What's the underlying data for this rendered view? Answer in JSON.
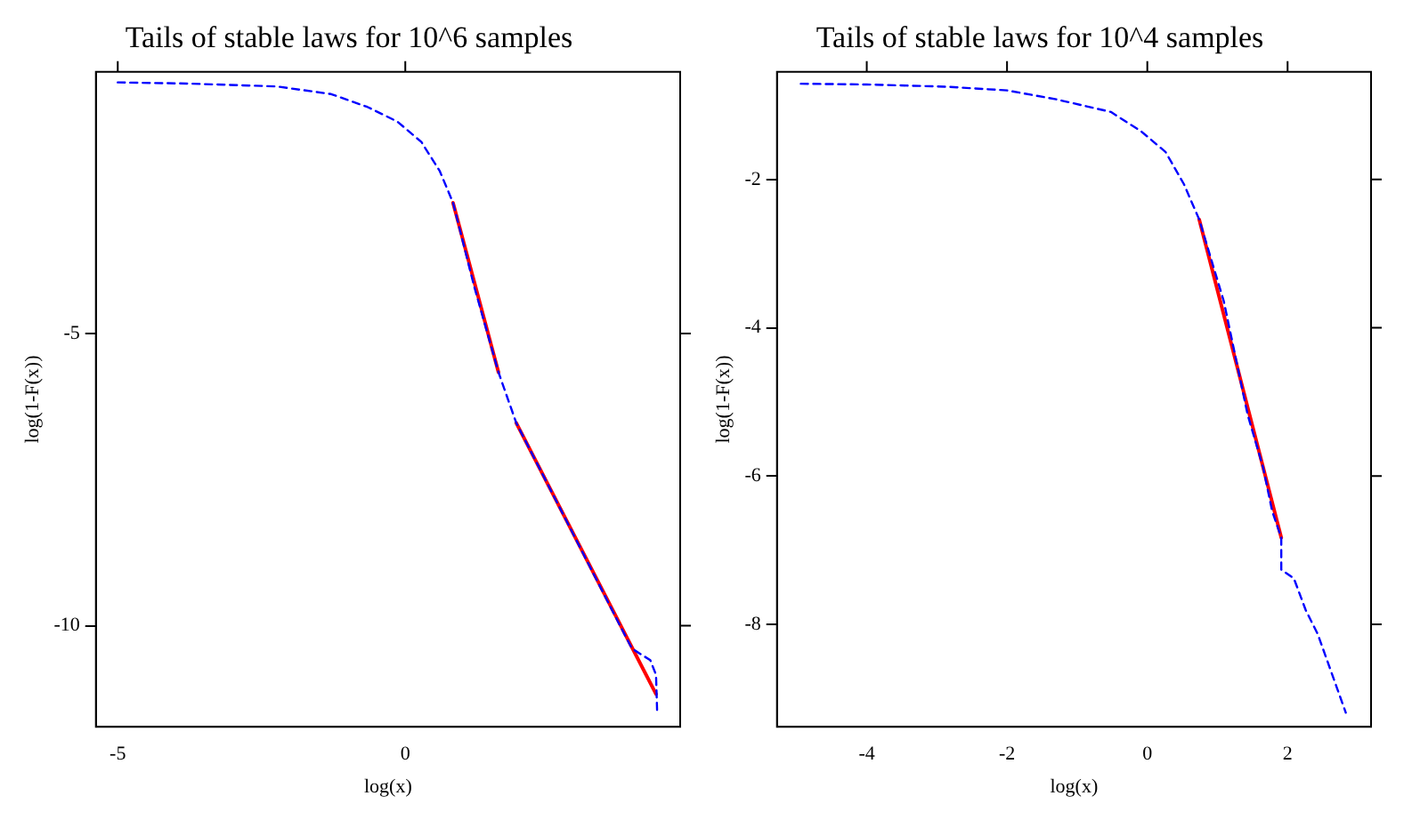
{
  "chart_data": [
    {
      "type": "line",
      "title": "Tails of stable laws for 10^6 samples",
      "xlabel": "log(x)",
      "ylabel": "log(1-F(x))",
      "xlim": [
        -5.38,
        4.78
      ],
      "ylim": [
        -11.73,
        -0.52
      ],
      "xticks": [
        -5,
        0
      ],
      "yticks": [
        -5,
        -10
      ],
      "grid": false,
      "legend": false,
      "marker": "none",
      "series": [
        {
          "color": "#0000ff",
          "line_style": "dashed",
          "x": [
            -5,
            -3.8,
            -2.23,
            -1.29,
            -0.66,
            -0.14,
            0.28,
            0.6,
            0.83,
            1.2,
            1.62,
            1.93,
            2.8,
            3.73,
            3.94,
            4.26,
            4.36,
            4.38
          ],
          "values": [
            -0.7,
            -0.72,
            -0.77,
            -0.9,
            -1.12,
            -1.37,
            -1.72,
            -2.22,
            -2.76,
            -4.2,
            -5.66,
            -6.53,
            -8.2,
            -9.99,
            -10.39,
            -10.59,
            -10.84,
            -11.49
          ]
        },
        {
          "color": "#ff0000",
          "line_style": "solid",
          "x": [
            0.83,
            1.62,
            1.75,
            1.93,
            4.36
          ],
          "values": [
            -2.76,
            -5.66,
            null,
            -6.53,
            -11.17
          ]
        }
      ]
    },
    {
      "type": "line",
      "title": "Tails of stable laws for 10^4 samples",
      "xlabel": "log(x)",
      "ylabel": "log(1-F(x))",
      "xlim": [
        -5.28,
        3.19
      ],
      "ylim": [
        -9.38,
        -0.55
      ],
      "xticks": [
        -4,
        -2,
        0,
        2
      ],
      "yticks": [
        -2,
        -4,
        -6,
        -8
      ],
      "grid": false,
      "legend": false,
      "marker": "none",
      "series": [
        {
          "color": "#0000ff",
          "line_style": "dashed",
          "x": [
            -4.94,
            -4,
            -2.87,
            -2,
            -1.3,
            -0.52,
            -0.09,
            0.26,
            0.52,
            0.74,
            1.09,
            1.43,
            1.65,
            1.78,
            1.91,
            1.91,
            2.09,
            2.26,
            2.43,
            2.83
          ],
          "values": [
            -0.71,
            -0.72,
            -0.75,
            -0.8,
            -0.92,
            -1.09,
            -1.35,
            -1.63,
            -2.06,
            -2.54,
            -3.64,
            -5.17,
            -5.88,
            -6.47,
            -6.83,
            -7.26,
            -7.38,
            -7.81,
            -8.13,
            -9.19
          ]
        },
        {
          "color": "#ff0000",
          "line_style": "solid",
          "x": [
            0.74,
            1.91
          ],
          "values": [
            -2.54,
            -6.83
          ]
        }
      ]
    }
  ]
}
